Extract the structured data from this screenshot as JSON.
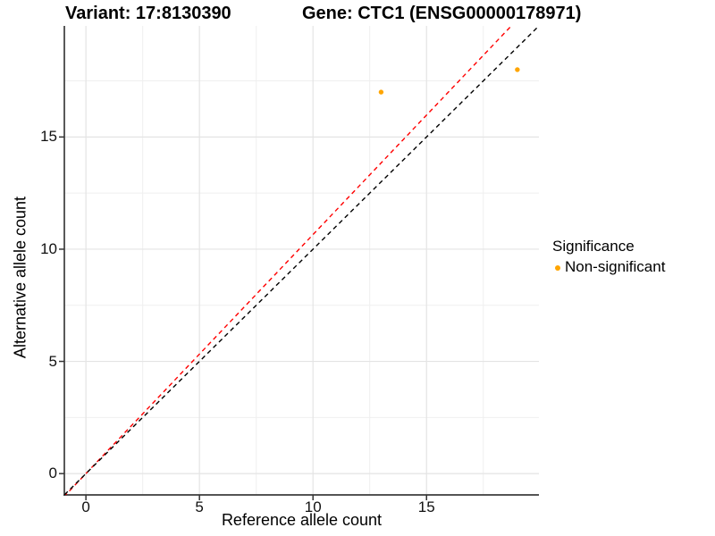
{
  "figure": {
    "title_left": "Variant: 17:8130390",
    "title_right": "Gene: CTC1 (ENSG00000178971)"
  },
  "chart_data": {
    "type": "scatter",
    "title_left": "Variant: 17:8130390",
    "title_right": "Gene: CTC1 (ENSG00000178971)",
    "xlabel": "Reference allele count",
    "ylabel": "Alternative allele count",
    "xlim": [
      -0.95,
      19.95
    ],
    "ylim": [
      -0.95,
      19.95
    ],
    "x_ticks": [
      0,
      5,
      10,
      15
    ],
    "y_ticks": [
      0,
      5,
      10,
      15
    ],
    "x_minor_ticks": [
      2.5,
      7.5,
      12.5,
      17.5
    ],
    "y_minor_ticks": [
      2.5,
      7.5,
      12.5,
      17.5
    ],
    "grid": true,
    "legend_position": "right",
    "series": [
      {
        "name": "Non-significant",
        "color": "#FFA500",
        "points": [
          {
            "x": 13,
            "y": 17
          },
          {
            "x": 19,
            "y": 18
          }
        ]
      }
    ],
    "ref_lines": [
      {
        "name": "fitted-ratio-line",
        "slope": 1.065,
        "intercept": 0,
        "color": "#FF0000",
        "dashed": true
      },
      {
        "name": "identity-line",
        "slope": 1,
        "intercept": 0,
        "color": "#000000",
        "dashed": true
      }
    ],
    "legend": {
      "title": "Significance",
      "items": [
        {
          "label": "Non-significant",
          "color": "#FFA500"
        }
      ]
    },
    "style": {
      "grid_major_color": "#E4E4E4",
      "grid_minor_color": "#EFEFEF",
      "axis_line_color": "#3C3C3C",
      "tick_color": "#333333"
    }
  }
}
